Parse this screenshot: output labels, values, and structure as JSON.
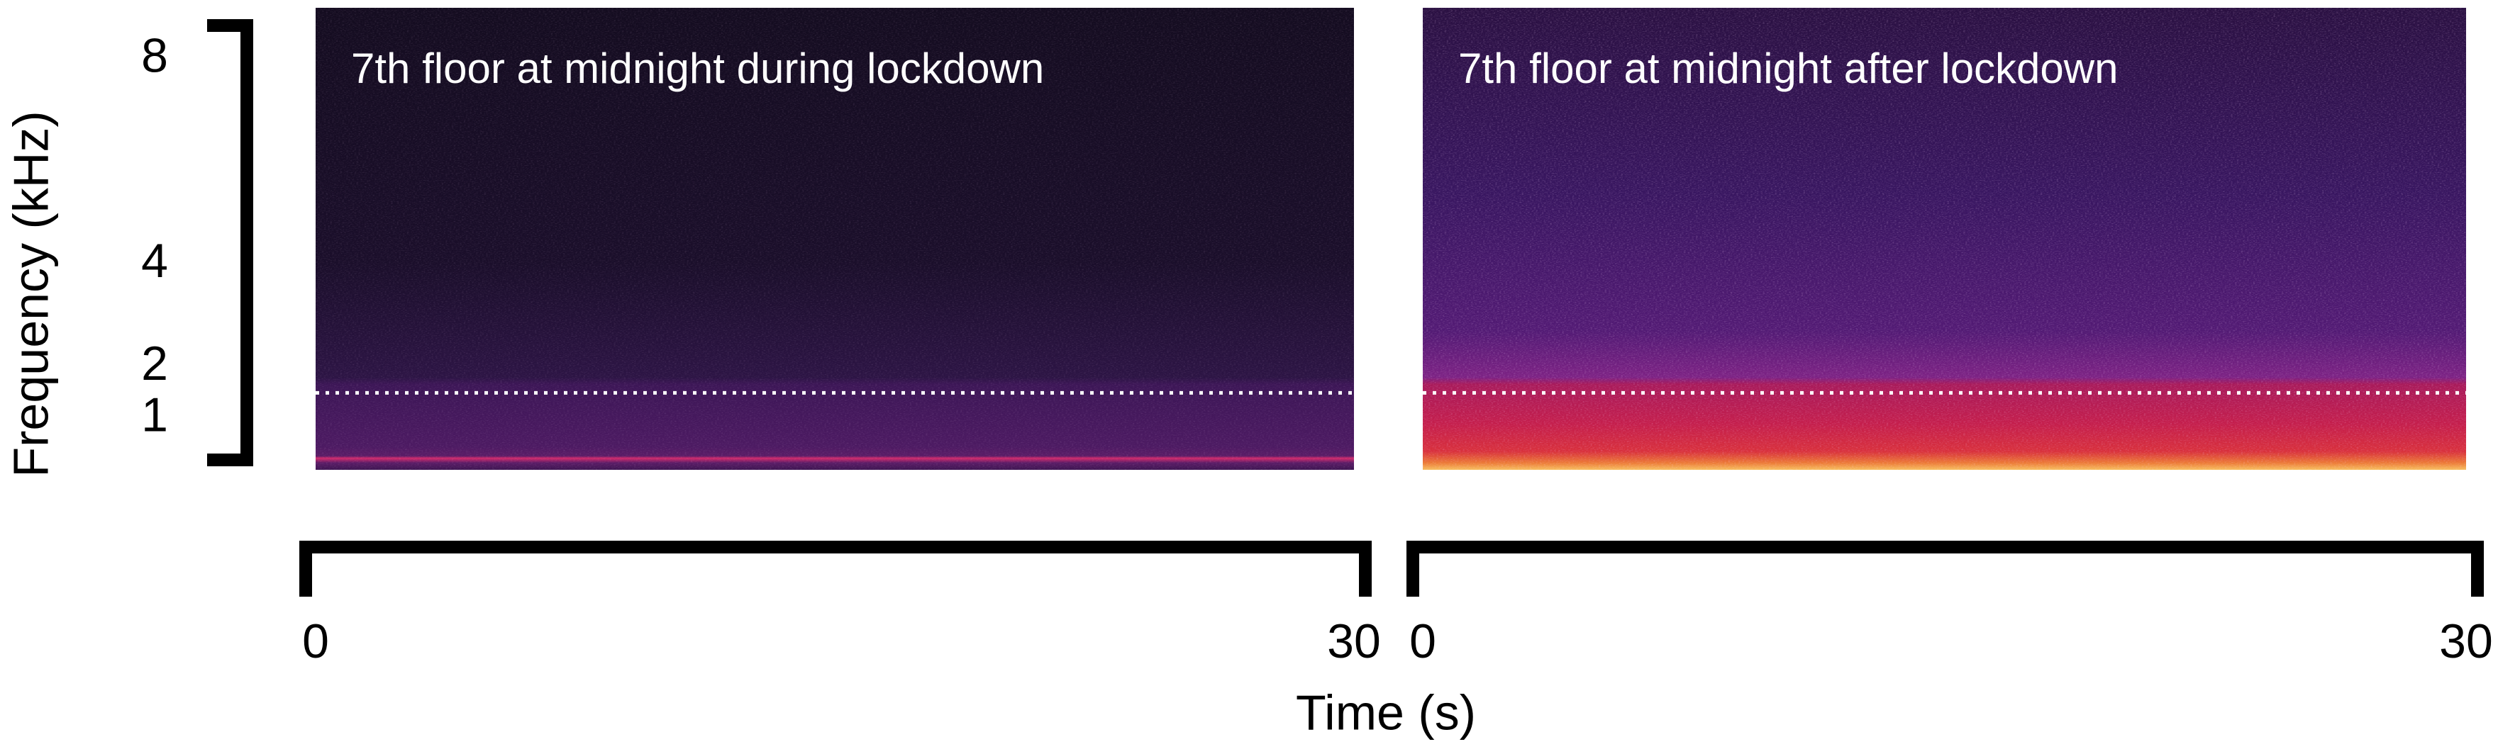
{
  "chart_data": [
    {
      "type": "spectrogram",
      "title": "7th floor at midnight during lockdown",
      "xlim": [
        0,
        30
      ],
      "xticks": [
        0,
        30
      ],
      "ylim": [
        0,
        9
      ],
      "yticks": [
        8,
        4,
        2,
        1
      ],
      "ylabel": "Frequency (kHz)",
      "xlabel": "Time (s)",
      "reference_line": 1.5
    },
    {
      "type": "spectrogram",
      "title": "7th floor at midnight after lockdown",
      "xlim": [
        0,
        30
      ],
      "xticks": [
        0,
        30
      ],
      "ylim": [
        0,
        9
      ],
      "reference_line": 1.5
    }
  ]
}
